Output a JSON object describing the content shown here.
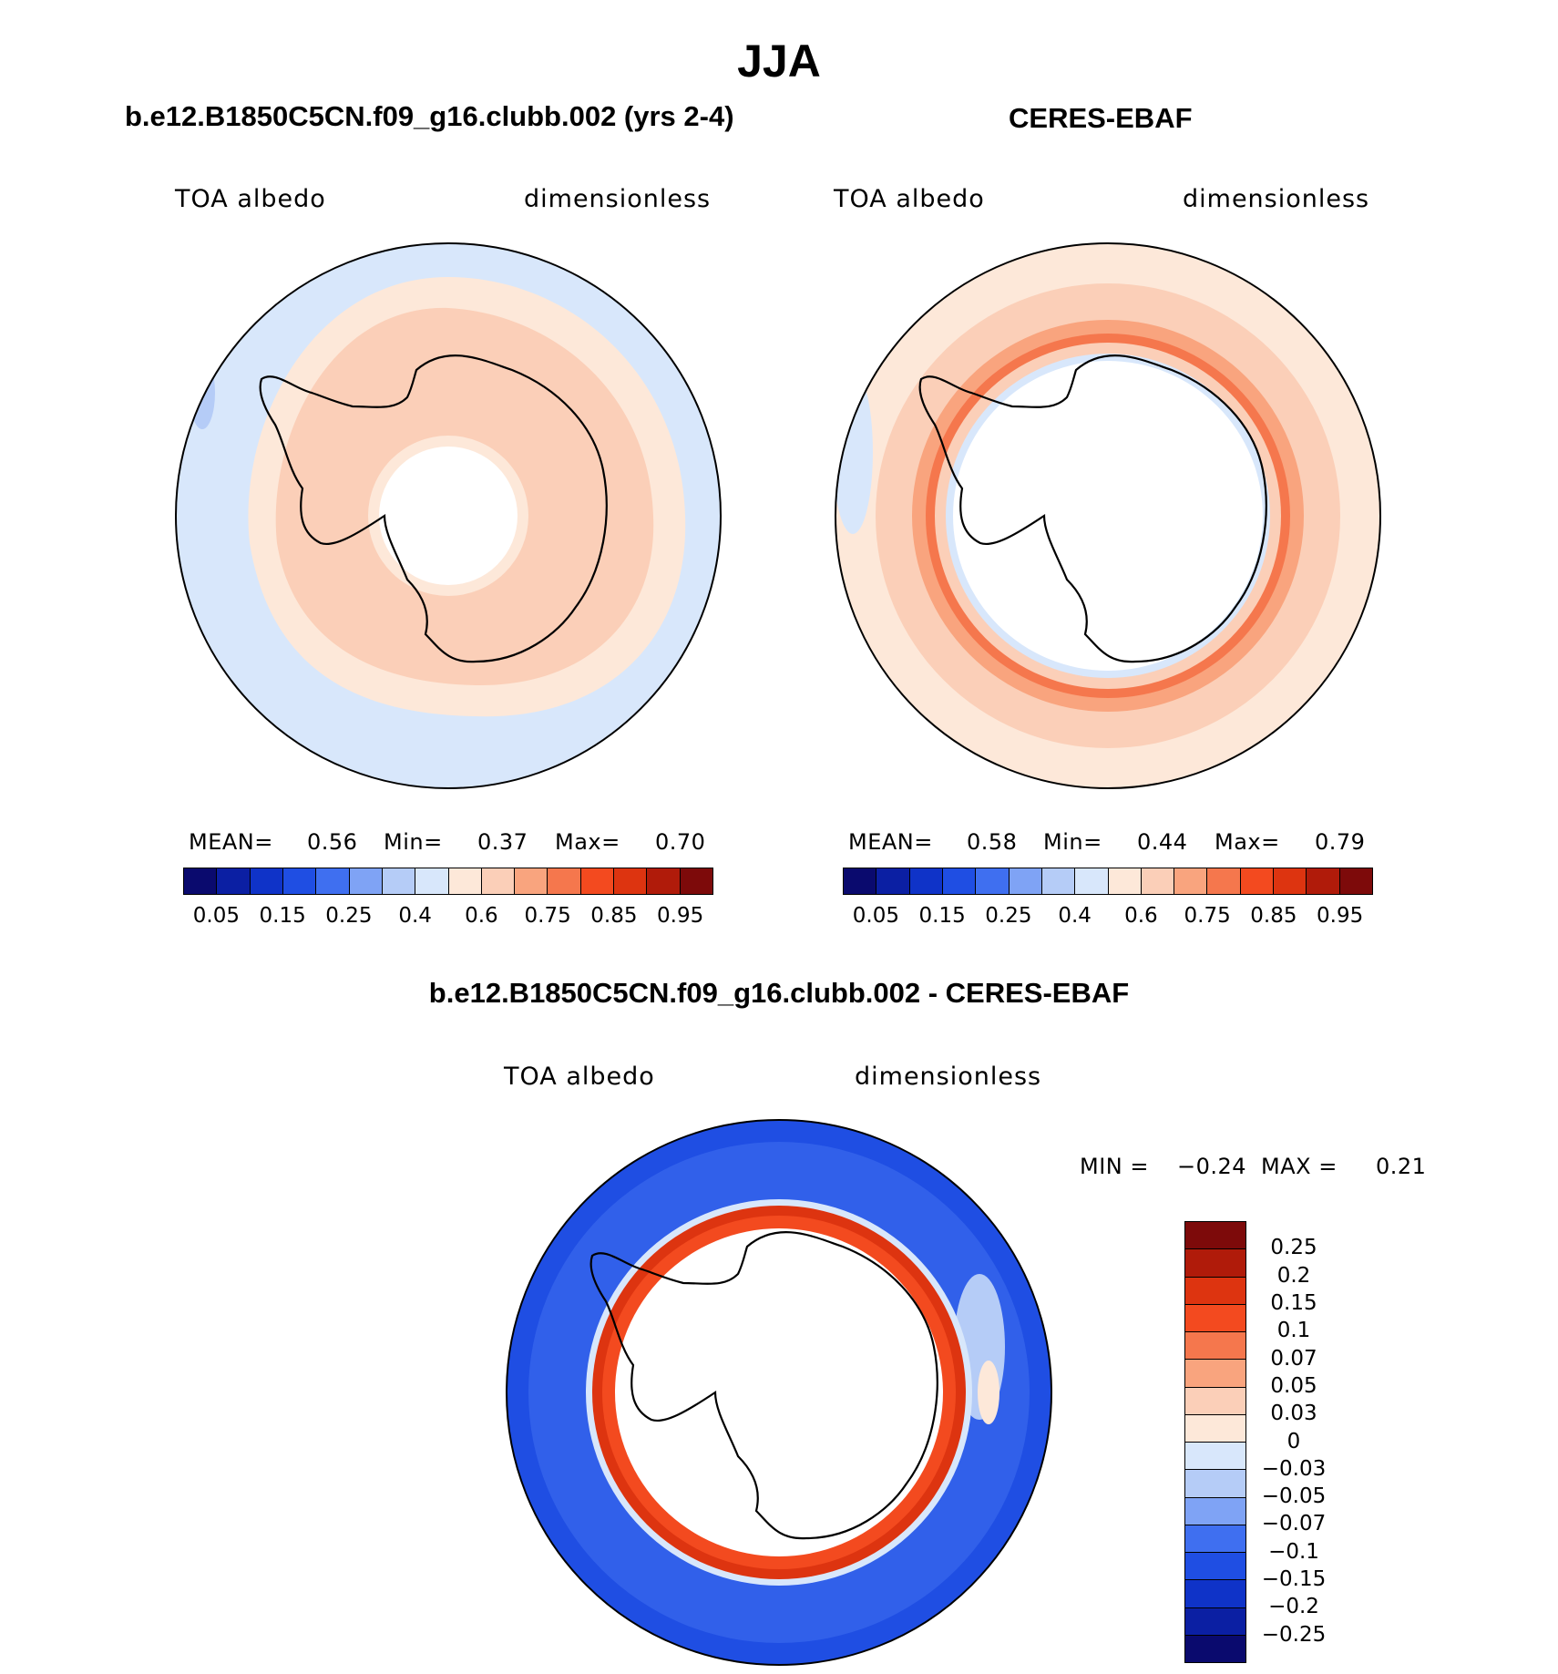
{
  "title": "JJA",
  "panels": {
    "model": {
      "subtitle": "b.e12.B1850C5CN.f09_g16.clubb.002 (yrs 2-4)",
      "variable": "TOA albedo",
      "units": "dimensionless",
      "mean_label": "MEAN=",
      "mean": "0.56",
      "min_label": "Min=",
      "min": "0.37",
      "max_label": "Max=",
      "max": "0.70"
    },
    "obs": {
      "subtitle": "CERES-EBAF",
      "variable": "TOA albedo",
      "units": "dimensionless",
      "mean_label": "MEAN=",
      "mean": "0.58",
      "min_label": "Min=",
      "min": "0.44",
      "max_label": "Max=",
      "max": "0.79"
    },
    "diff": {
      "subtitle": "b.e12.B1850C5CN.f09_g16.clubb.002 - CERES-EBAF",
      "variable": "TOA albedo",
      "units": "dimensionless",
      "min_label": "MIN =",
      "min": "−0.24",
      "max_label": "MAX =",
      "max": "0.21"
    }
  },
  "abs_colorbar": {
    "colors": [
      "#0a0a6e",
      "#0b1fa3",
      "#0f33c8",
      "#1f4ee3",
      "#3f6ff0",
      "#7fa3f5",
      "#b5ccf7",
      "#d8e7fb",
      "#fde8d9",
      "#fbcfb8",
      "#f9a47e",
      "#f5774d",
      "#f34a1f",
      "#dd3410",
      "#b01b0a",
      "#7d0a0a"
    ],
    "labels": [
      "0.05",
      "0.15",
      "0.25",
      "0.4",
      "0.6",
      "0.75",
      "0.85",
      "0.95"
    ]
  },
  "diff_colorbar": {
    "colors": [
      "#7d0a0a",
      "#b01b0a",
      "#dd3410",
      "#f34a1f",
      "#f5774d",
      "#f9a47e",
      "#fbcfb8",
      "#fde8d9",
      "#d8e7fb",
      "#b5ccf7",
      "#7fa3f5",
      "#3f6ff0",
      "#1f4ee3",
      "#0f33c8",
      "#0b1fa3",
      "#0a0a6e"
    ],
    "labels": [
      "0.25",
      "0.2",
      "0.15",
      "0.1",
      "0.07",
      "0.05",
      "0.03",
      "0",
      "−0.03",
      "−0.05",
      "−0.07",
      "−0.1",
      "−0.15",
      "−0.2",
      "−0.25"
    ]
  }
}
